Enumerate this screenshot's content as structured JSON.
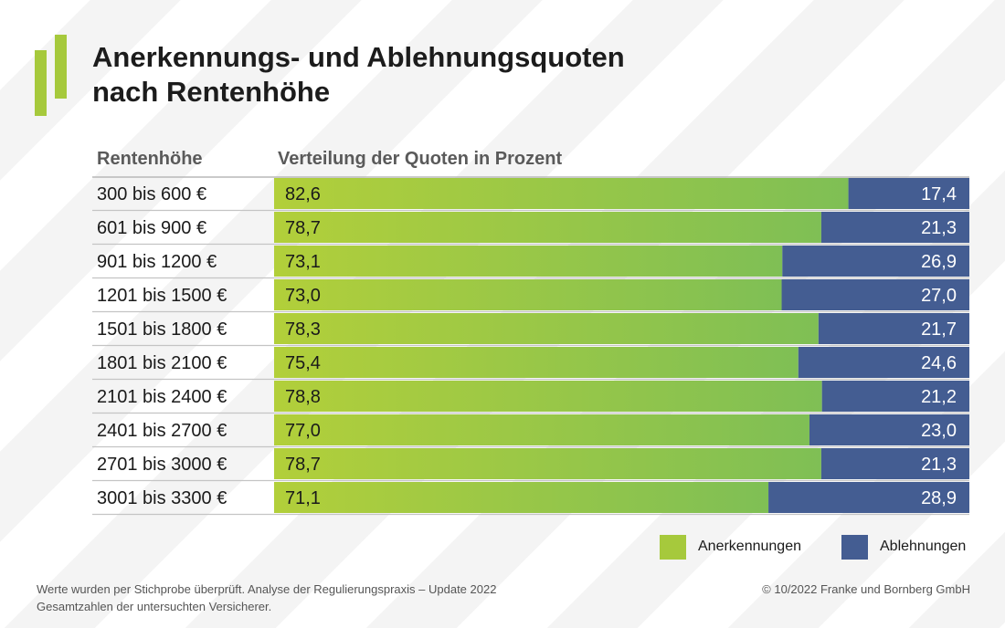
{
  "title": {
    "line1": "Anerkennungs- und Ablehnungsquoten",
    "line2": "nach Rentenhöhe"
  },
  "colors": {
    "logo": "#a6c93c",
    "green_start": "#b2cf3a",
    "green_end": "#7fbf55",
    "blue": "#445d92"
  },
  "chart_data": {
    "type": "bar",
    "stacked": true,
    "orientation": "horizontal",
    "column_header_category": "Rentenhöhe",
    "column_header_values": "Verteilung der Quoten in Prozent",
    "xlim": [
      0,
      100
    ],
    "categories": [
      "300 bis 600 €",
      "601 bis 900 €",
      "901 bis 1200 €",
      "1201 bis 1500 €",
      "1501 bis 1800 €",
      "1801 bis 2100 €",
      "2101 bis 2400 €",
      "2401 bis 2700 €",
      "2701 bis 3000 €",
      "3001 bis 3300 €"
    ],
    "series": [
      {
        "name": "Anerkennungen",
        "values": [
          82.6,
          78.7,
          73.1,
          73.0,
          78.3,
          75.4,
          78.8,
          77.0,
          78.7,
          71.1
        ],
        "labels": [
          "82,6",
          "78,7",
          "73,1",
          "73,0",
          "78,3",
          "75,4",
          "78,8",
          "77,0",
          "78,7",
          "71,1"
        ]
      },
      {
        "name": "Ablehnungen",
        "values": [
          17.4,
          21.3,
          26.9,
          27.0,
          21.7,
          24.6,
          21.2,
          23.0,
          21.3,
          28.9
        ],
        "labels": [
          "17,4",
          "21,3",
          "26,9",
          "27,0",
          "21,7",
          "24,6",
          "21,2",
          "23,0",
          "21,3",
          "28,9"
        ]
      }
    ],
    "legend": [
      "Anerkennungen",
      "Ablehnungen"
    ],
    "legend_position": "bottom-right"
  },
  "footer": {
    "line1": "Werte wurden per Stichprobe überprüft. Analyse der Regulierungspraxis – Update 2022",
    "line2": "Gesamtzahlen der untersuchten Versicherer.",
    "copyright": "© 10/2022 Franke und Bornberg GmbH"
  }
}
